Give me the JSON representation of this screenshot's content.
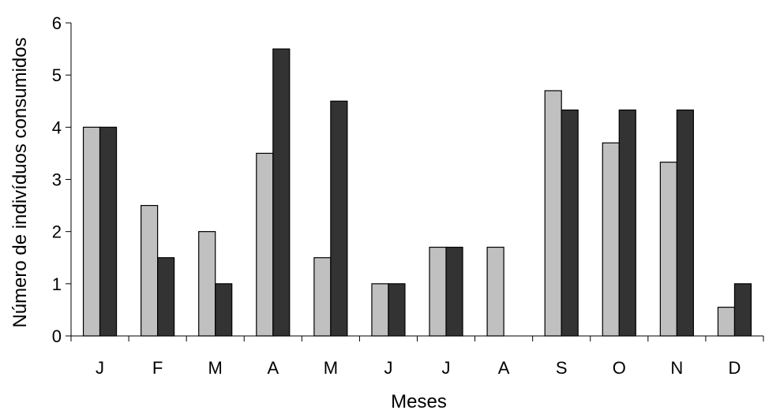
{
  "chart_data": {
    "type": "bar",
    "categories": [
      "J",
      "F",
      "M",
      "A",
      "M",
      "J",
      "J",
      "A",
      "S",
      "O",
      "N",
      "D"
    ],
    "series": [
      {
        "values": [
          4,
          2.5,
          2,
          3.5,
          1.5,
          1,
          1.7,
          1.7,
          4.7,
          3.7,
          3.33,
          0.55
        ],
        "color": "#c0c0c0"
      },
      {
        "values": [
          4,
          1.5,
          1,
          5.5,
          4.5,
          1,
          1.7,
          0,
          4.33,
          4.33,
          4.33,
          1
        ],
        "color": "#333333"
      }
    ],
    "xlabel": "Meses",
    "ylabel": "Número de indivíduos consumidos",
    "ylim": [
      0,
      6
    ],
    "yticks": [
      "0",
      "1",
      "2",
      "3",
      "4",
      "5",
      "6"
    ],
    "grid": false,
    "legend": "none"
  }
}
